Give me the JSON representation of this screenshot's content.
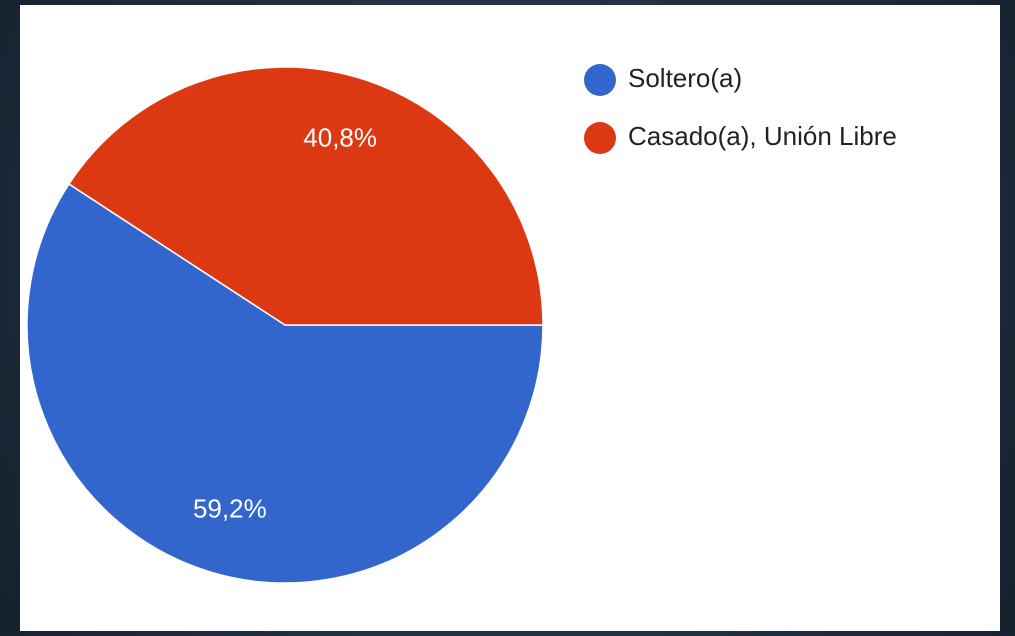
{
  "chart_data": {
    "type": "pie",
    "categories": [
      "Soltero(a)",
      "Casado(a), Unión Libre"
    ],
    "values": [
      59.2,
      40.8
    ],
    "value_labels": [
      "59,2%",
      "40,8%"
    ],
    "colors": [
      "#3366cc",
      "#dc3912"
    ],
    "legend": "right"
  }
}
